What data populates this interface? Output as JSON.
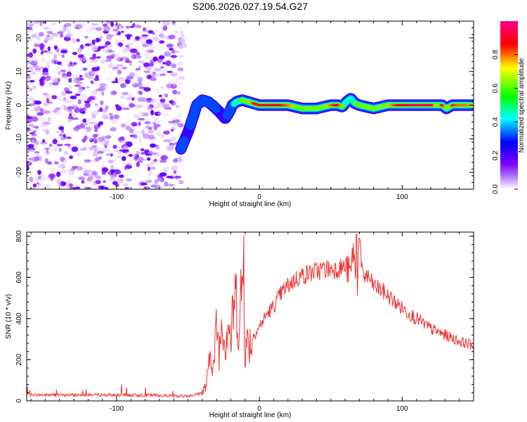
{
  "title": "S206.2026.027.19.54.G27",
  "chart_data": [
    {
      "type": "heatmap",
      "name": "spectrogram",
      "xlabel": "Height of straight line (km)",
      "ylabel": "Frequency (Hz)",
      "xlim": [
        -163,
        150
      ],
      "ylim": [
        -25,
        25
      ],
      "xticks": [
        -100,
        0,
        100
      ],
      "yticks": [
        -20,
        -10,
        0,
        10,
        20
      ],
      "colorbar": {
        "label": "Normalized spectral amplitude",
        "range": [
          0.0,
          1.0
        ],
        "ticks": [
          0.0,
          0.2,
          0.4,
          0.6,
          0.8
        ],
        "tick_labels": [
          "0.0",
          "0.2",
          "0.4",
          "0.6",
          "0.8"
        ],
        "colormap": [
          "#ffffff",
          "#8800ff",
          "#0000ff",
          "#00ffff",
          "#00ff00",
          "#ffff00",
          "#ff0000",
          "#ff0080"
        ]
      },
      "noise_region": {
        "x_from": -163,
        "x_to": -52,
        "y_from": -25,
        "y_to": 25
      },
      "ridge": {
        "x": [
          -55,
          -50,
          -46,
          -44,
          -40,
          -36,
          -33,
          -28,
          -24,
          -21,
          -19,
          -16,
          -12,
          -8,
          -4,
          0,
          10,
          20,
          30,
          40,
          50,
          55,
          58,
          61,
          64,
          67,
          70,
          80,
          90,
          100,
          110,
          120,
          125,
          128,
          131,
          135,
          140,
          145,
          150
        ],
        "y": [
          -13,
          -8,
          -3,
          0,
          1.5,
          1,
          0,
          -2,
          -4,
          -2,
          0,
          1,
          1.5,
          1,
          0.5,
          0,
          0,
          0,
          -1,
          -1,
          0,
          0,
          -0.5,
          1,
          2,
          0.5,
          0,
          -1,
          0,
          0,
          0,
          0,
          0,
          0,
          -1,
          0,
          0,
          0,
          0
        ],
        "amplitude": [
          0.3,
          0.25,
          0.3,
          0.35,
          0.4,
          0.3,
          0.3,
          0.25,
          0.25,
          0.3,
          0.35,
          0.5,
          0.6,
          0.7,
          0.85,
          0.9,
          0.9,
          0.8,
          0.65,
          0.6,
          0.8,
          0.9,
          0.6,
          0.5,
          0.45,
          0.55,
          0.75,
          0.6,
          0.75,
          0.9,
          0.95,
          0.95,
          0.6,
          0.95,
          0.55,
          0.85,
          0.8,
          0.8,
          0.75
        ]
      }
    },
    {
      "type": "line",
      "name": "snr",
      "xlabel": "Height of straight line (km)",
      "ylabel": "SNR (10 * v/v)",
      "xlim": [
        -163,
        150
      ],
      "ylim": [
        0,
        820
      ],
      "xticks": [
        -100,
        0,
        100
      ],
      "yticks": [
        0,
        200,
        400,
        600,
        800
      ],
      "color": "#ee3333",
      "series": {
        "name": "SNR",
        "x": [
          -163,
          -140,
          -120,
          -100,
          -80,
          -60,
          -50,
          -45,
          -40,
          -38,
          -36,
          -34,
          -32,
          -30,
          -28,
          -26,
          -24,
          -22,
          -20,
          -18,
          -16,
          -14,
          -12,
          -10,
          -8,
          -6,
          -4,
          -2,
          0,
          5,
          10,
          15,
          20,
          25,
          30,
          35,
          40,
          45,
          50,
          55,
          60,
          64,
          66,
          68,
          70,
          72,
          74,
          76,
          80,
          85,
          90,
          95,
          100,
          110,
          120,
          130,
          140,
          150
        ],
        "y": [
          30,
          28,
          30,
          28,
          28,
          25,
          25,
          30,
          40,
          60,
          120,
          260,
          150,
          380,
          240,
          440,
          260,
          420,
          280,
          470,
          500,
          300,
          640,
          230,
          300,
          280,
          320,
          340,
          360,
          420,
          460,
          520,
          560,
          590,
          610,
          620,
          630,
          640,
          640,
          645,
          650,
          620,
          760,
          480,
          790,
          580,
          620,
          600,
          560,
          540,
          510,
          480,
          450,
          400,
          350,
          320,
          290,
          270
        ]
      },
      "peaks": [
        {
          "x": -11,
          "y": 805
        },
        {
          "x": -13,
          "y": 640
        },
        {
          "x": 68,
          "y": 810
        },
        {
          "x": 70,
          "y": 790
        }
      ]
    }
  ]
}
